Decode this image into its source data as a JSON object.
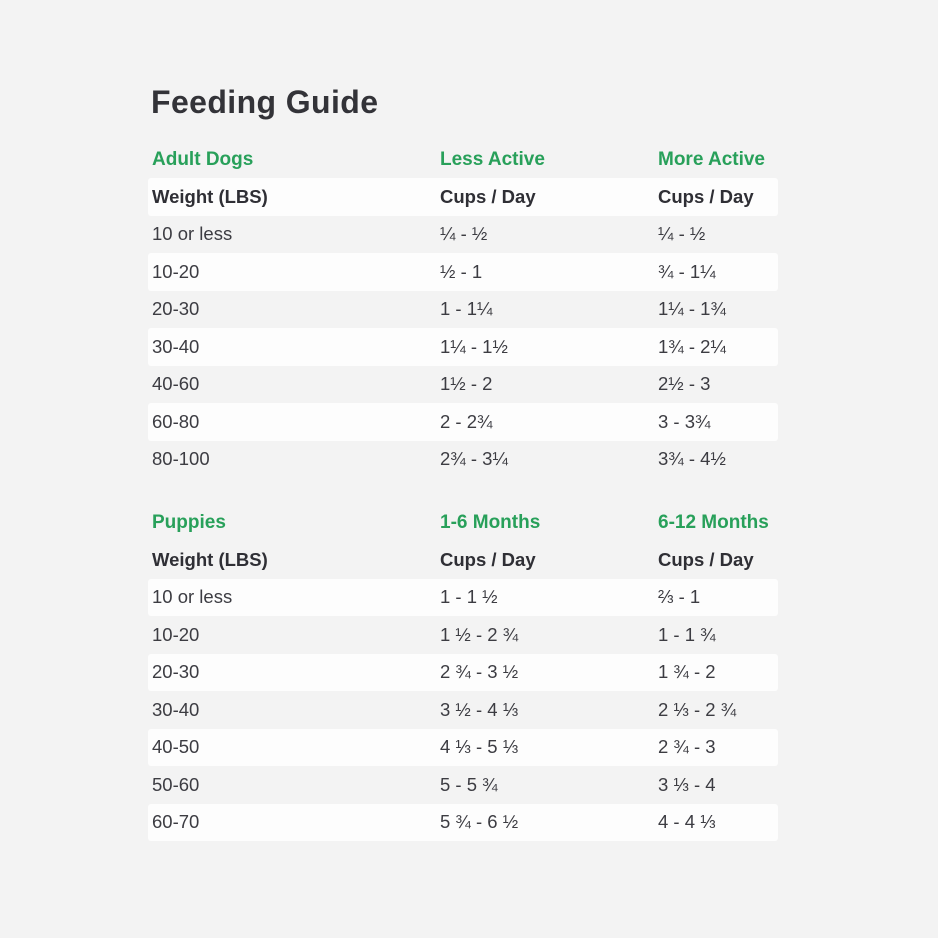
{
  "page": {
    "title": "Feeding Guide",
    "background_color": "#f3f3f3",
    "row_band_color": "#fdfdfd",
    "accent_green": "#28a05a",
    "text_color": "#333338"
  },
  "chart_data": [
    {
      "type": "table",
      "section_title": "Adult Dogs",
      "col2_title": "Less Active",
      "col3_title": "More Active",
      "sub_headers": [
        "Weight (LBS)",
        "Cups / Day",
        "Cups / Day"
      ],
      "rows": [
        [
          "10 or less",
          "¼ - ½",
          "¼ - ½"
        ],
        [
          "10-20",
          "½ - 1",
          "¾ - 1¼"
        ],
        [
          "20-30",
          "1 - 1¼",
          "1¼ - 1¾"
        ],
        [
          "30-40",
          "1¼ - 1½",
          "1¾ - 2¼"
        ],
        [
          "40-60",
          "1½ - 2",
          "2½ - 3"
        ],
        [
          "60-80",
          "2 - 2¾",
          "3 - 3¾"
        ],
        [
          "80-100",
          "2¾ - 3¼",
          "3¾ - 4½"
        ]
      ]
    },
    {
      "type": "table",
      "section_title": "Puppies",
      "col2_title": "1-6 Months",
      "col3_title": "6-12 Months",
      "sub_headers": [
        "Weight (LBS)",
        "Cups / Day",
        "Cups / Day"
      ],
      "rows": [
        [
          "10 or less",
          "1 - 1 ½",
          "⅔ - 1"
        ],
        [
          "10-20",
          "1 ½ - 2 ¾",
          "1 - 1 ¾"
        ],
        [
          "20-30",
          "2 ¾ - 3 ½",
          "1 ¾ - 2"
        ],
        [
          "30-40",
          "3 ½ - 4 ⅓",
          "2 ⅓ - 2 ¾"
        ],
        [
          "40-50",
          "4 ⅓ - 5 ⅓",
          "2 ¾ - 3"
        ],
        [
          "50-60",
          "5 - 5 ¾",
          "3 ⅓ - 4"
        ],
        [
          "60-70",
          "5 ¾ - 6 ½",
          "4 - 4 ⅓"
        ]
      ]
    }
  ]
}
